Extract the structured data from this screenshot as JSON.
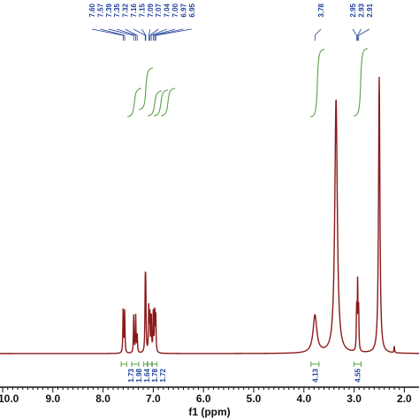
{
  "chart_data": {
    "type": "line",
    "title": "",
    "xlabel": "f1 (ppm)",
    "ylabel": "",
    "x_reversed": true,
    "xlim": [
      10.2,
      1.95
    ],
    "x_ticks": [
      {
        "value": 10.0,
        "label": "10.0"
      },
      {
        "value": 9.0,
        "label": "9.0"
      },
      {
        "value": 8.0,
        "label": "8.0"
      },
      {
        "value": 7.0,
        "label": "7.0"
      },
      {
        "value": 6.0,
        "label": "6.0"
      },
      {
        "value": 5.0,
        "label": "5.0"
      },
      {
        "value": 4.0,
        "label": "4.0"
      },
      {
        "value": 3.0,
        "label": "3.0"
      },
      {
        "value": 2.0,
        "label": "2.0"
      }
    ],
    "spectrum_color": "#8b1a1a",
    "annotation_color": "#1f3f9e",
    "integral_color": "#5aa04a",
    "peaks": [
      {
        "ppm": 7.6,
        "height": 0.2
      },
      {
        "ppm": 7.57,
        "height": 0.19
      },
      {
        "ppm": 7.39,
        "height": 0.17
      },
      {
        "ppm": 7.35,
        "height": 0.17
      },
      {
        "ppm": 7.32,
        "height": 0.08
      },
      {
        "ppm": 7.16,
        "height": 0.28
      },
      {
        "ppm": 7.15,
        "height": 0.26
      },
      {
        "ppm": 7.09,
        "height": 0.2
      },
      {
        "ppm": 7.07,
        "height": 0.17
      },
      {
        "ppm": 7.04,
        "height": 0.17
      },
      {
        "ppm": 7.0,
        "height": 0.19
      },
      {
        "ppm": 6.97,
        "height": 0.19
      },
      {
        "ppm": 6.95,
        "height": 0.16
      },
      {
        "ppm": 3.78,
        "height": 0.17,
        "width": 0.045
      },
      {
        "ppm": 3.36,
        "height": 1.15,
        "width": 0.03
      },
      {
        "ppm": 2.95,
        "height": 0.19
      },
      {
        "ppm": 2.93,
        "height": 0.31
      },
      {
        "ppm": 2.91,
        "height": 0.19
      },
      {
        "ppm": 2.5,
        "height": 1.25,
        "width": 0.016
      },
      {
        "ppm": 2.2,
        "height": 0.03
      }
    ],
    "peak_labels": [
      "7.60",
      "7.57",
      "7.39",
      "7.35",
      "7.32",
      "7.16",
      "7.15",
      "7.09",
      "7.07",
      "7.04",
      "7.00",
      "6.97",
      "6.95",
      "3.78",
      "2.95",
      "2.93",
      "2.91"
    ],
    "integrals": [
      {
        "from": 7.64,
        "to": 7.53,
        "label": "1.73"
      },
      {
        "from": 7.43,
        "to": 7.29,
        "label": "1.98"
      },
      {
        "from": 7.19,
        "to": 7.12,
        "label": "1.64"
      },
      {
        "from": 7.11,
        "to": 7.03,
        "label": "1.78"
      },
      {
        "from": 7.02,
        "to": 6.93,
        "label": "1.72"
      },
      {
        "from": 3.86,
        "to": 3.7,
        "label": "4.13"
      },
      {
        "from": 3.0,
        "to": 2.86,
        "label": "4.55"
      }
    ]
  }
}
